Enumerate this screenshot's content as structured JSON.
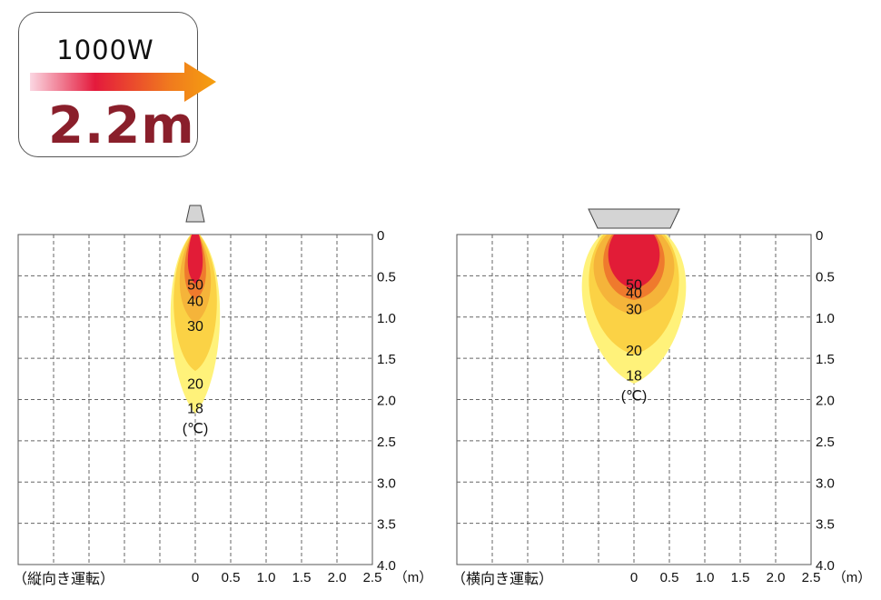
{
  "badge": {
    "wattage": "1000W",
    "distance": "2.2m"
  },
  "axis": {
    "x_ticks": [
      "0",
      "0.5",
      "1.0",
      "1.5",
      "2.0",
      "2.5"
    ],
    "x_unit": "（m）",
    "y_ticks": [
      "0",
      "0.5",
      "1.0",
      "1.5",
      "2.0",
      "2.5",
      "3.0",
      "3.5",
      "4.0"
    ]
  },
  "panels": [
    {
      "caption": "（縦向き運転）",
      "levels": [
        {
          "label": "50",
          "depth_m": 0.6
        },
        {
          "label": "40",
          "depth_m": 0.8
        },
        {
          "label": "30",
          "depth_m": 1.1
        },
        {
          "label": "20",
          "depth_m": 1.8
        },
        {
          "label": "18",
          "depth_m": 2.1
        }
      ],
      "unit_label": "(℃)"
    },
    {
      "caption": "（横向き運転）",
      "levels": [
        {
          "label": "50",
          "depth_m": 0.6
        },
        {
          "label": "40",
          "depth_m": 0.7
        },
        {
          "label": "30",
          "depth_m": 0.9
        },
        {
          "label": "20",
          "depth_m": 1.4
        },
        {
          "label": "18",
          "depth_m": 1.7
        }
      ],
      "unit_label": "(℃)"
    }
  ],
  "colors": {
    "c18": "#fff27a",
    "c20": "#fbd245",
    "c30": "#f5b43a",
    "c40": "#ef7a2d",
    "c50": "#e21c37",
    "heater": "#d4d4d4",
    "value_text": "#8a1f2b"
  }
}
